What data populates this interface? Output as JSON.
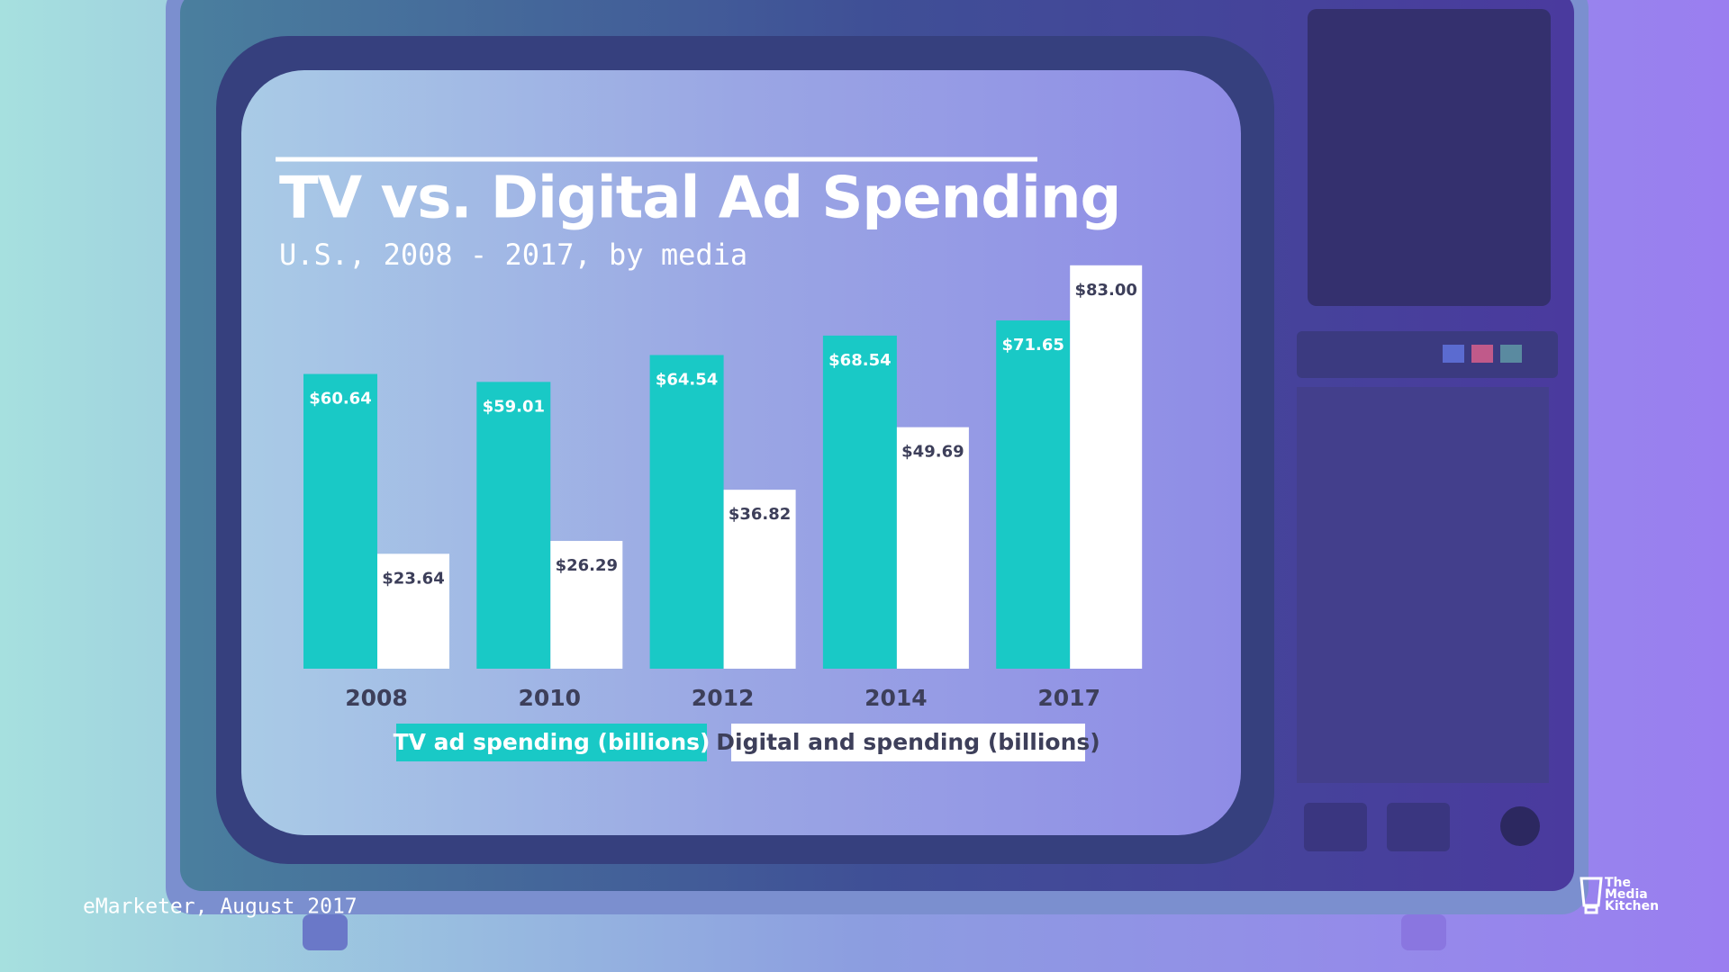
{
  "chart_data": {
    "type": "bar",
    "title": "TV vs. Digital Ad Spending",
    "subtitle": "U.S., 2008 - 2017, by media",
    "categories": [
      "2008",
      "2010",
      "2012",
      "2014",
      "2017"
    ],
    "series": [
      {
        "name": "TV ad spending (billions)",
        "color": "#19c9c6",
        "values": [
          60.64,
          59.01,
          64.54,
          68.54,
          71.65
        ],
        "value_labels": [
          "$60.64",
          "$59.01",
          "$64.54",
          "$68.54",
          "$71.65"
        ]
      },
      {
        "name": "Digital and spending (billions)",
        "color": "#ffffff",
        "values": [
          23.64,
          26.29,
          36.82,
          49.69,
          83.0
        ],
        "value_labels": [
          "$23.64",
          "$26.29",
          "$36.82",
          "$49.69",
          "$83.00"
        ]
      }
    ]
  },
  "source": "eMarketer, August 2017",
  "logo": {
    "lines": [
      "The",
      "Media",
      "Kitchen"
    ]
  }
}
